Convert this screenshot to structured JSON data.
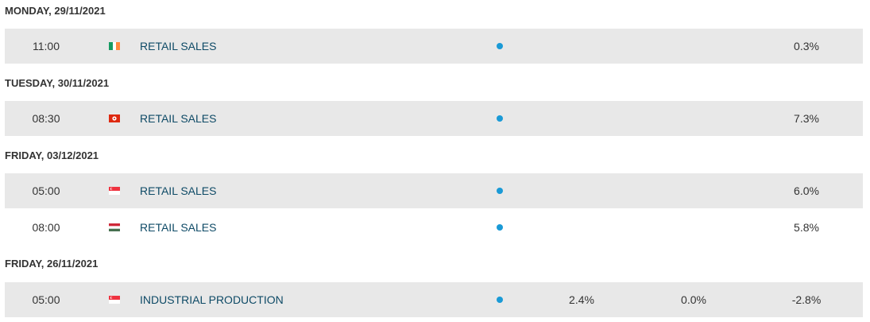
{
  "groups": [
    {
      "date": "MONDAY, 29/11/2021",
      "rows": [
        {
          "time": "11:00",
          "event": "RETAIL SALES",
          "previous": "0.3%"
        }
      ]
    },
    {
      "date": "TUESDAY, 30/11/2021",
      "rows": [
        {
          "time": "08:30",
          "event": "RETAIL SALES",
          "previous": "7.3%"
        }
      ]
    },
    {
      "date": "FRIDAY, 03/12/2021",
      "rows": [
        {
          "time": "05:00",
          "event": "RETAIL SALES",
          "previous": "6.0%"
        },
        {
          "time": "08:00",
          "event": "RETAIL SALES",
          "previous": "5.8%"
        }
      ]
    },
    {
      "date": "FRIDAY, 26/11/2021",
      "rows": [
        {
          "time": "05:00",
          "event": "INDUSTRIAL PRODUCTION",
          "actual": "2.4%",
          "forecast": "0.0%",
          "previous": "-2.8%"
        }
      ]
    }
  ]
}
